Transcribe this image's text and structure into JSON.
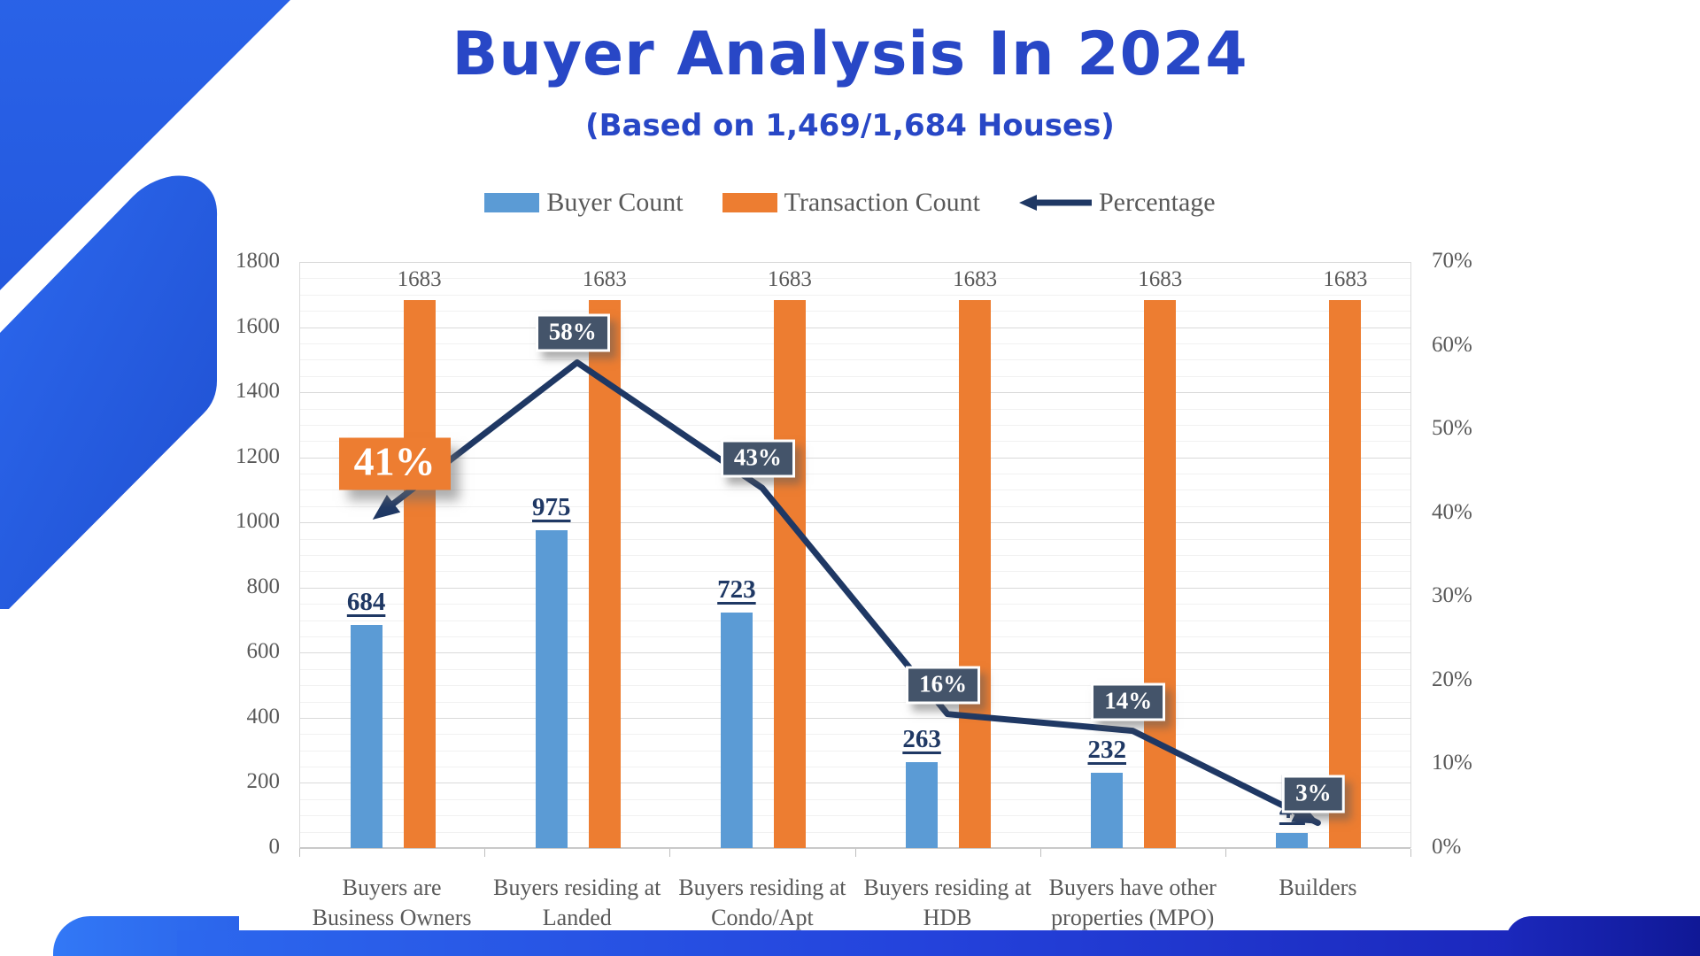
{
  "header": {
    "title": "Buyer Analysis In 2024",
    "subtitle": "(Based on 1,469/1,684 Houses)"
  },
  "legend": [
    {
      "label": "Buyer Count",
      "color": "#5B9BD5",
      "glyph": "swatch"
    },
    {
      "label": "Transaction Count",
      "color": "#ED7D31",
      "glyph": "swatch"
    },
    {
      "label": "Percentage",
      "color": "#1F3864",
      "glyph": "left-arrow"
    }
  ],
  "chart_data": {
    "type": "combo",
    "categories": [
      [
        "Buyers are",
        "Business Owners"
      ],
      [
        "Buyers residing at",
        "Landed"
      ],
      [
        "Buyers residing at",
        "Condo/Apt"
      ],
      [
        "Buyers residing at",
        "HDB"
      ],
      [
        "Buyers have other",
        "properties (MPO)"
      ],
      [
        "Builders"
      ]
    ],
    "series": [
      {
        "name": "Buyer Count",
        "type": "bar",
        "color": "#5B9BD5",
        "values": [
          684,
          975,
          723,
          263,
          232,
          47
        ],
        "labels": [
          "684",
          "975",
          "723",
          "263",
          "232",
          "47"
        ]
      },
      {
        "name": "Transaction Count",
        "type": "bar",
        "color": "#ED7D31",
        "values": [
          1683,
          1683,
          1683,
          1683,
          1683,
          1683
        ],
        "labels": [
          "1683",
          "1683",
          "1683",
          "1683",
          "1683",
          "1683"
        ]
      },
      {
        "name": "Percentage",
        "type": "line",
        "color": "#1F3864",
        "values": [
          41,
          58,
          43,
          16,
          14,
          3
        ],
        "labels": [
          "41%",
          "58%",
          "43%",
          "16%",
          "14%",
          "3%"
        ],
        "first_label_style": "orange-callout"
      }
    ],
    "left_axis": {
      "min": 0,
      "max": 1800,
      "step": 200,
      "minor_step": 50,
      "ticks": [
        "0",
        "200",
        "400",
        "600",
        "800",
        "1000",
        "1200",
        "1400",
        "1600",
        "1800"
      ]
    },
    "right_axis": {
      "min": 0,
      "max": 70,
      "step": 10,
      "ticks": [
        "0%",
        "10%",
        "20%",
        "30%",
        "40%",
        "50%",
        "60%",
        "70%"
      ]
    },
    "grid": true,
    "legend_position": "top"
  },
  "colors": {
    "title": "#2847C6",
    "bar_blue": "#5B9BD5",
    "bar_orange": "#ED7D31",
    "line_navy": "#1F3864",
    "badge_slate": "#44546A",
    "axis_text": "#595959"
  }
}
